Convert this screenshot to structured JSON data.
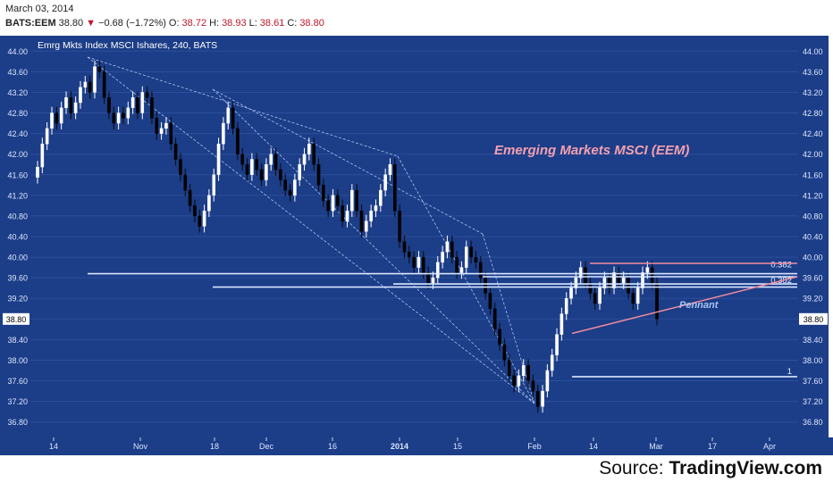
{
  "header": {
    "date": "March 03, 2014",
    "symbol": "BATS:EEM",
    "last": "38.80",
    "change": "−0.68 (−1.72%)",
    "o_label": "O:",
    "o": "38.72",
    "h_label": "H:",
    "h": "38.93",
    "l_label": "L:",
    "l": "38.61",
    "c_label": "C:",
    "c": "38.80"
  },
  "source": {
    "prefix": "Source: ",
    "name": "TradingView.com"
  },
  "colors": {
    "background": "#1c3d87",
    "bull": "#ffffff",
    "bear": "#000000",
    "grid": "#2c4f9c",
    "trendline": "#a8c4f0",
    "fib": "#d8e6ff",
    "pennant": "#f28ba0",
    "title_text": "#f4a0b0",
    "pennant_text": "#a8c4f0",
    "price_label_bg": "#ffffff"
  },
  "chart_data": {
    "type": "candlestick",
    "title": "Emrg Mkts Index MSCI Ishares, 240, BATS",
    "annotation_title": "Emerging Markets MSCI (EEM)",
    "annotation_pennant": "Pennant",
    "ylim": [
      36.5,
      44.3
    ],
    "yticks": [
      "44.00",
      "43.60",
      "43.20",
      "42.80",
      "42.40",
      "42.00",
      "41.60",
      "41.20",
      "40.80",
      "40.40",
      "40.00",
      "39.60",
      "39.20",
      "38.80",
      "38.40",
      "38.00",
      "37.60",
      "37.20",
      "36.80"
    ],
    "current_price": "38.80",
    "xticks": [
      "14",
      "Nov",
      "18",
      "Dec",
      "16",
      "2014",
      "15",
      "Feb",
      "14",
      "Mar",
      "17",
      "Apr"
    ],
    "fib_labels": [
      "0.382",
      "0.382",
      "1"
    ],
    "closes": [
      41.75,
      42.2,
      42.5,
      42.8,
      42.6,
      42.9,
      43.1,
      42.8,
      43.0,
      43.3,
      43.4,
      43.2,
      43.7,
      43.6,
      43.1,
      42.8,
      42.6,
      42.8,
      42.7,
      42.9,
      43.1,
      42.8,
      43.2,
      43.1,
      42.7,
      42.4,
      42.5,
      42.6,
      42.2,
      41.9,
      41.6,
      41.3,
      41.0,
      40.8,
      40.6,
      40.9,
      41.2,
      41.6,
      42.2,
      42.6,
      42.9,
      42.5,
      42.0,
      41.8,
      41.6,
      41.9,
      41.7,
      41.5,
      41.8,
      42.0,
      41.7,
      41.5,
      41.3,
      41.2,
      41.5,
      41.8,
      42.0,
      42.2,
      41.8,
      41.4,
      41.1,
      40.9,
      41.2,
      41.0,
      40.7,
      40.9,
      41.3,
      40.9,
      40.5,
      40.7,
      40.9,
      41.0,
      41.3,
      41.6,
      41.8,
      40.9,
      40.3,
      40.1,
      40.0,
      39.8,
      40.0,
      39.7,
      39.5,
      39.6,
      39.9,
      40.1,
      40.3,
      40.0,
      39.7,
      39.8,
      40.2,
      40.0,
      39.9,
      39.6,
      39.3,
      39.0,
      38.6,
      38.3,
      38.0,
      37.7,
      37.5,
      37.7,
      37.9,
      37.6,
      37.4,
      37.1,
      37.4,
      37.8,
      38.1,
      38.5,
      38.9,
      39.2,
      39.4,
      39.6,
      39.8,
      39.5,
      39.3,
      39.1,
      39.4,
      39.6,
      39.4,
      39.7,
      39.5,
      39.6,
      39.3,
      39.1,
      39.4,
      39.7,
      39.8,
      39.5,
      38.8
    ]
  }
}
